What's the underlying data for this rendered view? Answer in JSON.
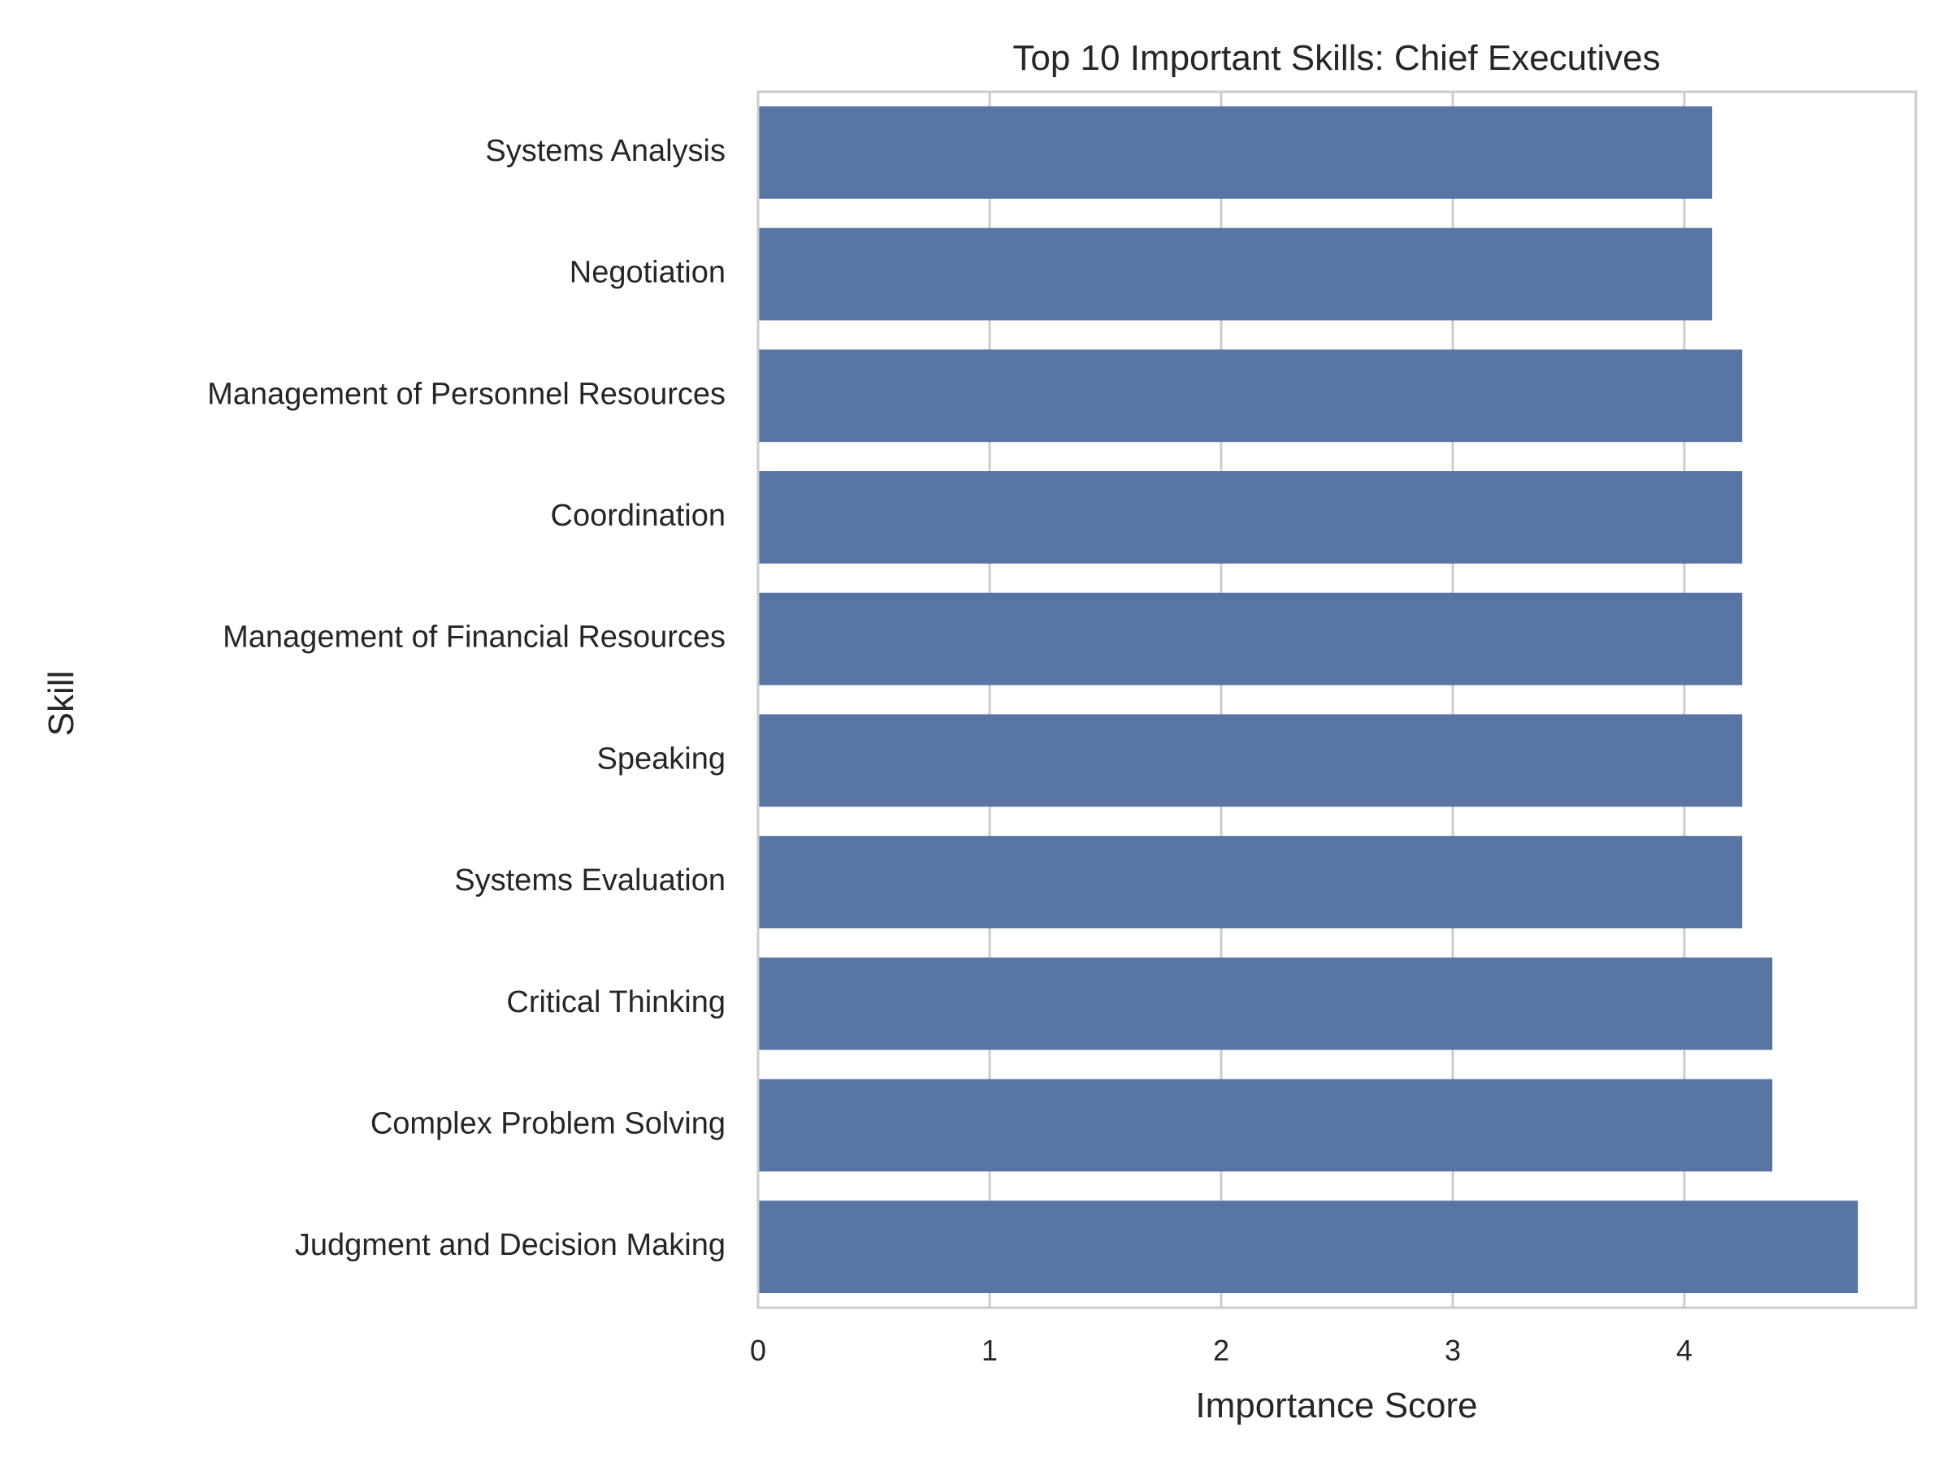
{
  "chart_data": {
    "type": "bar",
    "orientation": "horizontal",
    "title": "Top 10 Important Skills: Chief Executives",
    "xlabel": "Importance Score",
    "ylabel": "Skill",
    "categories": [
      "Systems Analysis",
      "Negotiation",
      "Management of Personnel Resources",
      "Coordination",
      "Management of Financial Resources",
      "Speaking",
      "Systems Evaluation",
      "Critical Thinking",
      "Complex Problem Solving",
      "Judgment and Decision Making"
    ],
    "values": [
      4.12,
      4.12,
      4.25,
      4.25,
      4.25,
      4.25,
      4.25,
      4.38,
      4.38,
      4.75
    ],
    "xlim": [
      0,
      5.0
    ],
    "xticks": [
      0,
      1,
      2,
      3,
      4
    ],
    "grid": "vertical",
    "bar_color": "#5975a4"
  }
}
